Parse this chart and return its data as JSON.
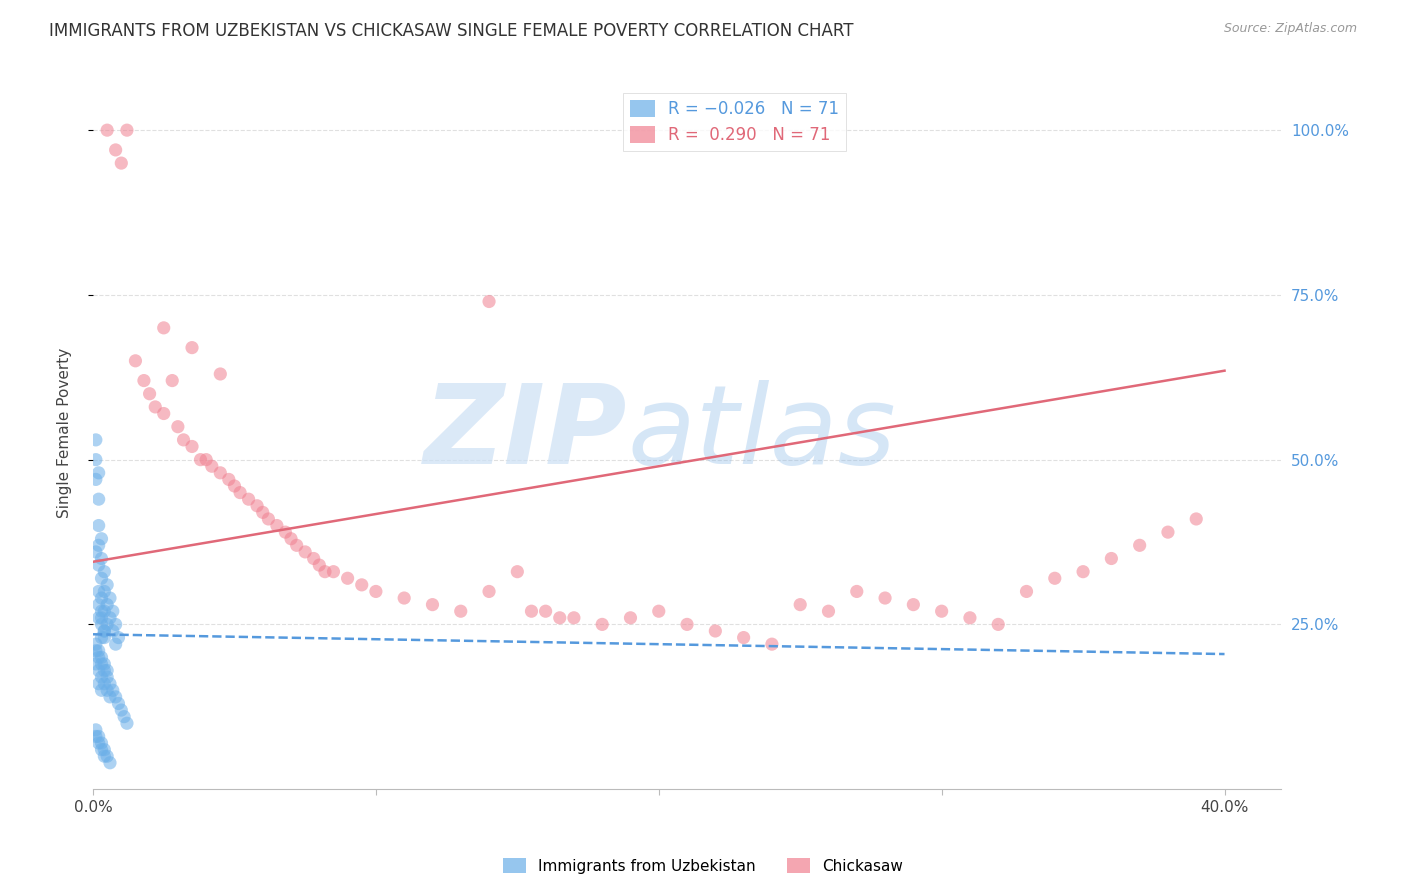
{
  "title": "IMMIGRANTS FROM UZBEKISTAN VS CHICKASAW SINGLE FEMALE POVERTY CORRELATION CHART",
  "source": "Source: ZipAtlas.com",
  "ylabel": "Single Female Poverty",
  "xlim": [
    0.0,
    0.42
  ],
  "ylim": [
    0.0,
    1.08
  ],
  "blue_scatter_x": [
    0.001,
    0.001,
    0.001,
    0.001,
    0.002,
    0.002,
    0.002,
    0.002,
    0.002,
    0.002,
    0.003,
    0.003,
    0.003,
    0.003,
    0.003,
    0.003,
    0.004,
    0.004,
    0.004,
    0.004,
    0.005,
    0.005,
    0.005,
    0.006,
    0.006,
    0.007,
    0.007,
    0.008,
    0.008,
    0.009,
    0.001,
    0.001,
    0.002,
    0.002,
    0.002,
    0.003,
    0.003,
    0.003,
    0.004,
    0.004,
    0.005,
    0.005,
    0.006,
    0.006,
    0.007,
    0.008,
    0.009,
    0.01,
    0.011,
    0.012,
    0.001,
    0.001,
    0.002,
    0.002,
    0.003,
    0.003,
    0.004,
    0.004,
    0.005,
    0.006,
    0.001,
    0.002,
    0.003,
    0.004,
    0.005,
    0.002,
    0.003,
    0.004,
    0.002,
    0.003,
    0.004
  ],
  "blue_scatter_y": [
    0.53,
    0.5,
    0.47,
    0.36,
    0.48,
    0.44,
    0.4,
    0.37,
    0.34,
    0.3,
    0.38,
    0.35,
    0.32,
    0.29,
    0.26,
    0.23,
    0.33,
    0.3,
    0.27,
    0.24,
    0.31,
    0.28,
    0.25,
    0.29,
    0.26,
    0.27,
    0.24,
    0.25,
    0.22,
    0.23,
    0.21,
    0.19,
    0.2,
    0.18,
    0.16,
    0.19,
    0.17,
    0.15,
    0.18,
    0.16,
    0.17,
    0.15,
    0.16,
    0.14,
    0.15,
    0.14,
    0.13,
    0.12,
    0.11,
    0.1,
    0.09,
    0.08,
    0.08,
    0.07,
    0.07,
    0.06,
    0.06,
    0.05,
    0.05,
    0.04,
    0.22,
    0.21,
    0.2,
    0.19,
    0.18,
    0.26,
    0.25,
    0.24,
    0.28,
    0.27,
    0.23
  ],
  "pink_scatter_x": [
    0.005,
    0.008,
    0.01,
    0.012,
    0.015,
    0.018,
    0.02,
    0.022,
    0.025,
    0.028,
    0.03,
    0.032,
    0.035,
    0.038,
    0.04,
    0.042,
    0.045,
    0.048,
    0.05,
    0.052,
    0.055,
    0.058,
    0.06,
    0.062,
    0.065,
    0.068,
    0.07,
    0.072,
    0.075,
    0.078,
    0.08,
    0.082,
    0.085,
    0.09,
    0.095,
    0.1,
    0.11,
    0.12,
    0.13,
    0.14,
    0.15,
    0.16,
    0.17,
    0.18,
    0.19,
    0.2,
    0.21,
    0.22,
    0.23,
    0.24,
    0.25,
    0.26,
    0.27,
    0.28,
    0.29,
    0.3,
    0.31,
    0.32,
    0.33,
    0.34,
    0.35,
    0.36,
    0.37,
    0.38,
    0.025,
    0.035,
    0.045,
    0.14,
    0.39,
    0.155,
    0.165
  ],
  "pink_scatter_y": [
    1.0,
    0.97,
    0.95,
    1.0,
    0.65,
    0.62,
    0.6,
    0.58,
    0.57,
    0.62,
    0.55,
    0.53,
    0.52,
    0.5,
    0.5,
    0.49,
    0.48,
    0.47,
    0.46,
    0.45,
    0.44,
    0.43,
    0.42,
    0.41,
    0.4,
    0.39,
    0.38,
    0.37,
    0.36,
    0.35,
    0.34,
    0.33,
    0.33,
    0.32,
    0.31,
    0.3,
    0.29,
    0.28,
    0.27,
    0.3,
    0.33,
    0.27,
    0.26,
    0.25,
    0.26,
    0.27,
    0.25,
    0.24,
    0.23,
    0.22,
    0.28,
    0.27,
    0.3,
    0.29,
    0.28,
    0.27,
    0.26,
    0.25,
    0.3,
    0.32,
    0.33,
    0.35,
    0.37,
    0.39,
    0.7,
    0.67,
    0.63,
    0.74,
    0.41,
    0.27,
    0.26
  ],
  "blue_line_x": [
    0.0,
    0.4
  ],
  "blue_line_y": [
    0.235,
    0.205
  ],
  "pink_line_x": [
    0.0,
    0.4
  ],
  "pink_line_y": [
    0.345,
    0.635
  ],
  "scatter_alpha": 0.55,
  "scatter_size": 90,
  "blue_color": "#6aaee8",
  "pink_color": "#f08090",
  "blue_line_color": "#5599dd",
  "pink_line_color": "#e06878",
  "grid_color": "#dddddd",
  "background_color": "#ffffff",
  "title_fontsize": 12,
  "axis_label_fontsize": 11,
  "tick_fontsize": 11,
  "right_tick_color": "#5599dd"
}
